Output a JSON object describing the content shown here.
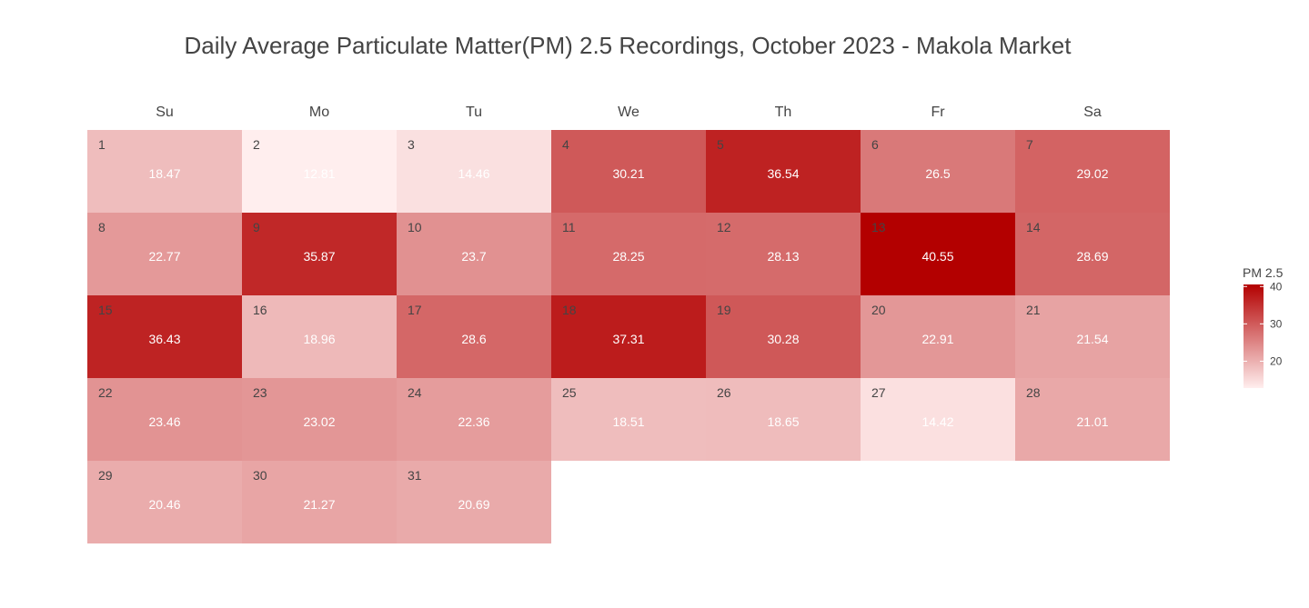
{
  "chart_data": {
    "type": "heatmap",
    "title": "Daily Average Particulate Matter(PM) 2.5 Recordings, October 2023 - Makola Market",
    "weekdays": [
      "Su",
      "Mo",
      "Tu",
      "We",
      "Th",
      "Fr",
      "Sa"
    ],
    "first_weekday_index": 0,
    "days": [
      1,
      2,
      3,
      4,
      5,
      6,
      7,
      8,
      9,
      10,
      11,
      12,
      13,
      14,
      15,
      16,
      17,
      18,
      19,
      20,
      21,
      22,
      23,
      24,
      25,
      26,
      27,
      28,
      29,
      30,
      31
    ],
    "values": [
      18.47,
      12.81,
      14.46,
      30.21,
      36.54,
      26.5,
      29.02,
      22.77,
      35.87,
      23.7,
      28.25,
      28.13,
      40.55,
      28.69,
      36.43,
      18.96,
      28.6,
      37.31,
      30.28,
      22.91,
      21.54,
      23.46,
      23.02,
      22.36,
      18.51,
      18.65,
      14.42,
      21.01,
      20.46,
      21.27,
      20.69
    ],
    "value_range": [
      12.81,
      40.55
    ],
    "colorscale": {
      "low": "#ffeeee",
      "high": "#b30000"
    },
    "legend": {
      "title": "PM 2.5",
      "ticks": [
        20,
        30,
        40
      ],
      "placement": "right"
    }
  }
}
